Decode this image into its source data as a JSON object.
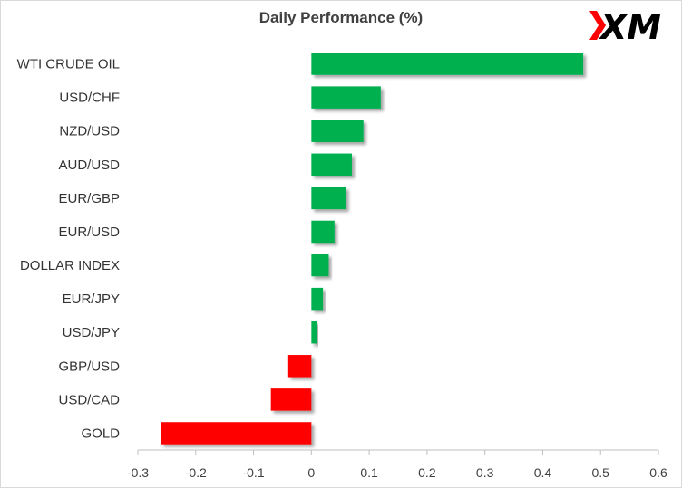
{
  "chart_data": {
    "type": "bar",
    "orientation": "horizontal",
    "title": "Daily Performance  (%)",
    "categories": [
      "WTI CRUDE OIL",
      "USD/CHF",
      "NZD/USD",
      "AUD/USD",
      "EUR/GBP",
      "EUR/USD",
      "DOLLAR INDEX",
      "EUR/JPY",
      "USD/JPY",
      "GBP/USD",
      "USD/CAD",
      "GOLD"
    ],
    "values": [
      0.47,
      0.12,
      0.09,
      0.07,
      0.06,
      0.04,
      0.03,
      0.02,
      0.01,
      -0.04,
      -0.07,
      -0.26
    ],
    "xlim": [
      -0.3,
      0.6
    ],
    "xticks": [
      "-0.3",
      "-0.2",
      "-0.1",
      "0",
      "0.1",
      "0.2",
      "0.3",
      "0.4",
      "0.5",
      "0.6"
    ],
    "xtick_values": [
      -0.3,
      -0.2,
      -0.1,
      0,
      0.1,
      0.2,
      0.3,
      0.4,
      0.5,
      0.6
    ],
    "xlabel": "",
    "ylabel": "",
    "grid": false,
    "colors": {
      "positive": "#00b050",
      "negative": "#ff0000"
    }
  },
  "logo": {
    "text": "XM",
    "color": "#000000",
    "accent": "#ff0000"
  }
}
